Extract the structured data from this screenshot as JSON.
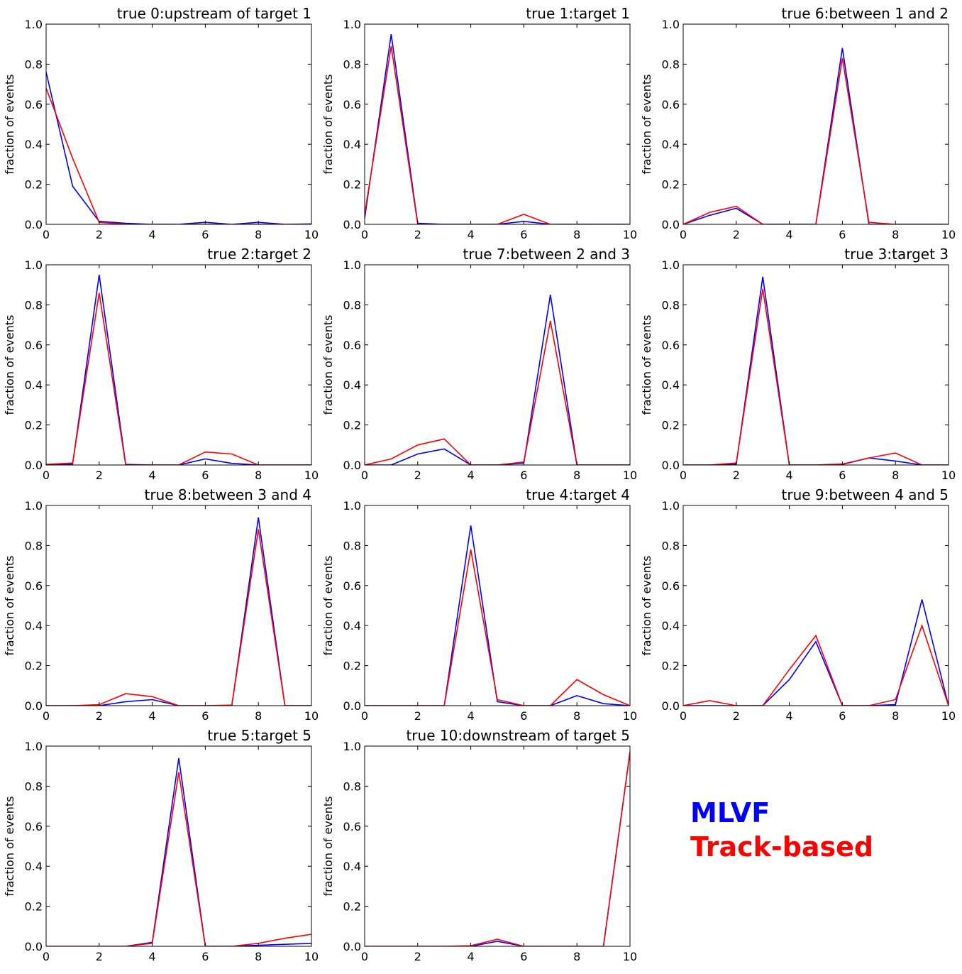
{
  "legend": [
    {
      "label": "MLVF",
      "color": "#0000ff"
    },
    {
      "label": "Track-based",
      "color": "#ff0000"
    }
  ],
  "chart_data": [
    {
      "type": "line",
      "title": "true 0:upstream of target 1",
      "ylabel": "fraction of events",
      "x": [
        0,
        1,
        2,
        3,
        4,
        5,
        6,
        7,
        8,
        9,
        10
      ],
      "xlim": [
        0,
        10
      ],
      "ylim": [
        0,
        1.0
      ],
      "xticks": [
        "0",
        "2",
        "4",
        "6",
        "8",
        "10"
      ],
      "yticks": [
        "0.0",
        "0.2",
        "0.4",
        "0.6",
        "0.8",
        "1.0"
      ],
      "series": [
        {
          "color": "#0000ff",
          "values": [
            0.76,
            0.19,
            0.015,
            0.005,
            0.0,
            0.0,
            0.01,
            0.0,
            0.01,
            0.0,
            0.002
          ]
        },
        {
          "color": "#ff0000",
          "values": [
            0.68,
            0.33,
            0.01,
            0.0,
            0.0,
            0.0,
            0.0,
            0.0,
            0.0,
            0.0,
            0.0
          ]
        }
      ]
    },
    {
      "type": "line",
      "title": "true 1:target 1",
      "ylabel": "fraction of events",
      "x": [
        0,
        1,
        2,
        3,
        4,
        5,
        6,
        7,
        8,
        9,
        10
      ],
      "xlim": [
        0,
        10
      ],
      "ylim": [
        0,
        1.0
      ],
      "xticks": [
        "0",
        "2",
        "4",
        "6",
        "8",
        "10"
      ],
      "yticks": [
        "0.0",
        "0.2",
        "0.4",
        "0.6",
        "0.8",
        "1.0"
      ],
      "series": [
        {
          "color": "#0000ff",
          "values": [
            0.03,
            0.95,
            0.005,
            0.0,
            0.0,
            0.0,
            0.015,
            0.0,
            0.0,
            0.0,
            0.0
          ]
        },
        {
          "color": "#ff0000",
          "values": [
            0.05,
            0.89,
            0.0,
            0.0,
            0.0,
            0.0,
            0.05,
            0.0,
            0.0,
            0.0,
            0.0
          ]
        }
      ]
    },
    {
      "type": "line",
      "title": "true 6:between 1 and 2",
      "ylabel": "fraction of events",
      "x": [
        0,
        1,
        2,
        3,
        4,
        5,
        6,
        7,
        8,
        9,
        10
      ],
      "xlim": [
        0,
        10
      ],
      "ylim": [
        0,
        1.0
      ],
      "xticks": [
        "0",
        "2",
        "4",
        "6",
        "8",
        "10"
      ],
      "yticks": [
        "0.0",
        "0.2",
        "0.4",
        "0.6",
        "0.8",
        "1.0"
      ],
      "series": [
        {
          "color": "#0000ff",
          "values": [
            0.0,
            0.045,
            0.08,
            0.0,
            0.0,
            0.0,
            0.88,
            0.0,
            0.0,
            0.0,
            0.0
          ]
        },
        {
          "color": "#ff0000",
          "values": [
            0.0,
            0.06,
            0.09,
            0.0,
            0.0,
            0.0,
            0.83,
            0.01,
            0.0,
            0.0,
            0.0
          ]
        }
      ]
    },
    {
      "type": "line",
      "title": "true 2:target 2",
      "ylabel": "fraction of events",
      "x": [
        0,
        1,
        2,
        3,
        4,
        5,
        6,
        7,
        8,
        9,
        10
      ],
      "xlim": [
        0,
        10
      ],
      "ylim": [
        0,
        1.0
      ],
      "xticks": [
        "0",
        "2",
        "4",
        "6",
        "8",
        "10"
      ],
      "yticks": [
        "0.0",
        "0.2",
        "0.4",
        "0.6",
        "0.8",
        "1.0"
      ],
      "series": [
        {
          "color": "#0000ff",
          "values": [
            0.003,
            0.005,
            0.95,
            0.003,
            0.0,
            0.0,
            0.03,
            0.008,
            0.0,
            0.0,
            0.0
          ]
        },
        {
          "color": "#ff0000",
          "values": [
            0.003,
            0.01,
            0.86,
            0.0,
            0.0,
            0.0,
            0.065,
            0.055,
            0.0,
            0.0,
            0.0
          ]
        }
      ]
    },
    {
      "type": "line",
      "title": "true 7:between 2 and 3",
      "ylabel": "fraction of events",
      "x": [
        0,
        1,
        2,
        3,
        4,
        5,
        6,
        7,
        8,
        9,
        10
      ],
      "xlim": [
        0,
        10
      ],
      "ylim": [
        0,
        1.0
      ],
      "xticks": [
        "0",
        "2",
        "4",
        "6",
        "8",
        "10"
      ],
      "yticks": [
        "0.0",
        "0.2",
        "0.4",
        "0.6",
        "0.8",
        "1.0"
      ],
      "series": [
        {
          "color": "#0000ff",
          "values": [
            0.0,
            0.0,
            0.055,
            0.08,
            0.0,
            0.0,
            0.01,
            0.85,
            0.0,
            0.0,
            0.0
          ]
        },
        {
          "color": "#ff0000",
          "values": [
            0.0,
            0.03,
            0.1,
            0.13,
            0.0,
            0.0,
            0.015,
            0.72,
            0.0,
            0.0,
            0.0
          ]
        }
      ]
    },
    {
      "type": "line",
      "title": "true 3:target 3",
      "ylabel": "fraction of events",
      "x": [
        0,
        1,
        2,
        3,
        4,
        5,
        6,
        7,
        8,
        9,
        10
      ],
      "xlim": [
        0,
        10
      ],
      "ylim": [
        0,
        1.0
      ],
      "xticks": [
        "0",
        "2",
        "4",
        "6",
        "8",
        "10"
      ],
      "yticks": [
        "0.0",
        "0.2",
        "0.4",
        "0.6",
        "0.8",
        "1.0"
      ],
      "series": [
        {
          "color": "#0000ff",
          "values": [
            0.0,
            0.0,
            0.005,
            0.94,
            0.0,
            0.0,
            0.003,
            0.035,
            0.02,
            0.0,
            0.0
          ]
        },
        {
          "color": "#ff0000",
          "values": [
            0.0,
            0.0,
            0.01,
            0.88,
            0.0,
            0.0,
            0.005,
            0.035,
            0.06,
            0.0,
            0.0
          ]
        }
      ]
    },
    {
      "type": "line",
      "title": "true 8:between 3 and 4",
      "ylabel": "fraction of events",
      "x": [
        0,
        1,
        2,
        3,
        4,
        5,
        6,
        7,
        8,
        9,
        10
      ],
      "xlim": [
        0,
        10
      ],
      "ylim": [
        0,
        1.0
      ],
      "xticks": [
        "0",
        "2",
        "4",
        "6",
        "8",
        "10"
      ],
      "yticks": [
        "0.0",
        "0.2",
        "0.4",
        "0.6",
        "0.8",
        "1.0"
      ],
      "series": [
        {
          "color": "#0000ff",
          "values": [
            0.0,
            0.0,
            0.0,
            0.02,
            0.03,
            0.0,
            0.0,
            0.0,
            0.94,
            0.0,
            0.0
          ]
        },
        {
          "color": "#ff0000",
          "values": [
            0.0,
            0.0,
            0.005,
            0.06,
            0.045,
            0.0,
            0.0,
            0.003,
            0.88,
            0.0,
            0.0
          ]
        }
      ]
    },
    {
      "type": "line",
      "title": "true 4:target 4",
      "ylabel": "fraction of events",
      "x": [
        0,
        1,
        2,
        3,
        4,
        5,
        6,
        7,
        8,
        9,
        10
      ],
      "xlim": [
        0,
        10
      ],
      "ylim": [
        0,
        1.0
      ],
      "xticks": [
        "0",
        "2",
        "4",
        "6",
        "8",
        "10"
      ],
      "yticks": [
        "0.0",
        "0.2",
        "0.4",
        "0.6",
        "0.8",
        "1.0"
      ],
      "series": [
        {
          "color": "#0000ff",
          "values": [
            0.0,
            0.0,
            0.0,
            0.0,
            0.9,
            0.02,
            0.0,
            0.0,
            0.05,
            0.01,
            0.0
          ]
        },
        {
          "color": "#ff0000",
          "values": [
            0.0,
            0.0,
            0.0,
            0.0,
            0.78,
            0.03,
            0.0,
            0.0,
            0.13,
            0.055,
            0.0
          ]
        }
      ]
    },
    {
      "type": "line",
      "title": "true 9:between 4 and 5",
      "ylabel": "fraction of events",
      "x": [
        0,
        1,
        2,
        3,
        4,
        5,
        6,
        7,
        8,
        9,
        10
      ],
      "xlim": [
        0,
        10
      ],
      "ylim": [
        0,
        1.0
      ],
      "xticks": [
        "0",
        "2",
        "4",
        "6",
        "8",
        "10"
      ],
      "yticks": [
        "0.0",
        "0.2",
        "0.4",
        "0.6",
        "0.8",
        "1.0"
      ],
      "series": [
        {
          "color": "#0000ff",
          "values": [
            0.0,
            0.0,
            0.0,
            0.0,
            0.13,
            0.32,
            0.0,
            0.0,
            0.005,
            0.53,
            0.0
          ]
        },
        {
          "color": "#ff0000",
          "values": [
            0.0,
            0.025,
            0.0,
            0.0,
            0.18,
            0.35,
            0.0,
            0.0,
            0.03,
            0.4,
            0.0
          ]
        }
      ]
    },
    {
      "type": "line",
      "title": "true 5:target 5",
      "ylabel": "fraction of events",
      "x": [
        0,
        1,
        2,
        3,
        4,
        5,
        6,
        7,
        8,
        9,
        10
      ],
      "xlim": [
        0,
        10
      ],
      "ylim": [
        0,
        1.0
      ],
      "xticks": [
        "0",
        "2",
        "4",
        "6",
        "8",
        "10"
      ],
      "yticks": [
        "0.0",
        "0.2",
        "0.4",
        "0.6",
        "0.8",
        "1.0"
      ],
      "series": [
        {
          "color": "#0000ff",
          "values": [
            0.0,
            0.0,
            0.0,
            0.0,
            0.02,
            0.94,
            0.0,
            0.0,
            0.005,
            0.01,
            0.015
          ]
        },
        {
          "color": "#ff0000",
          "values": [
            0.0,
            0.0,
            0.0,
            0.0,
            0.015,
            0.87,
            0.0,
            0.0,
            0.015,
            0.04,
            0.06
          ]
        }
      ]
    },
    {
      "type": "line",
      "title": "true 10:downstream of target 5",
      "ylabel": "fraction of events",
      "x": [
        0,
        1,
        2,
        3,
        4,
        5,
        6,
        7,
        8,
        9,
        10
      ],
      "xlim": [
        0,
        10
      ],
      "ylim": [
        0,
        1.0
      ],
      "xticks": [
        "0",
        "2",
        "4",
        "6",
        "8",
        "10"
      ],
      "yticks": [
        "0.0",
        "0.2",
        "0.4",
        "0.6",
        "0.8",
        "1.0"
      ],
      "series": [
        {
          "color": "#0000ff",
          "values": [
            0.0,
            0.0,
            0.0,
            0.0,
            0.0,
            0.025,
            0.0,
            0.0,
            0.0,
            0.0,
            0.97
          ]
        },
        {
          "color": "#ff0000",
          "values": [
            0.0,
            0.0,
            0.0,
            0.0,
            0.003,
            0.035,
            0.0,
            0.0,
            0.0,
            0.0,
            0.97
          ]
        }
      ]
    }
  ]
}
